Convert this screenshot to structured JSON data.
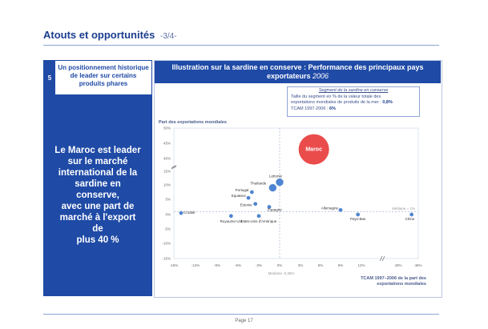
{
  "header": {
    "title": "Atouts et opportunités",
    "page_fraction": "-3/4-"
  },
  "left": {
    "number": "5",
    "box_text": "Un positionnement historique de leader sur certains produits phares",
    "panel_text": "Le Maroc est leader\nsur le marché\ninternational de la\nsardine en conserve,\navec une part de\nmarché à l'export de\nplus 40 %"
  },
  "chart_header": {
    "title": "Illustration sur la sardine en conserve : Performance des principaux pays exportateurs",
    "year": "2006"
  },
  "segment_box": {
    "title": "Segment de la sardine en conserve",
    "line1": "Taille du segment en % de la valeur totale des",
    "line2_prefix": "exportations mondiales de produits de la mer :",
    "line2_value": "0,8%",
    "line3_prefix": "TCAM 1997-2006 :",
    "line3_value": "6%"
  },
  "y_axis_title": "Part des exportations mondiales",
  "x_axis_title": "TCAM 1997–2006 de la part des exportations mondiales",
  "median_y_label": "Médiane = 1%",
  "median_x_label": "Médiane -0,38%",
  "footer": "Page 17",
  "colors": {
    "brand": "#1f4aa6",
    "bubble": "#ea4c4c",
    "point": "#4e86d4"
  },
  "chart_data": {
    "type": "scatter",
    "x_tick_labels": [
      "-15%",
      "-12%",
      "-9%",
      "-6%",
      "-3%",
      "0%",
      "3%",
      "6%",
      "9%",
      "12%",
      "40%",
      "46%"
    ],
    "y_tick_labels": [
      "-15%",
      "-10%",
      "-5%",
      "0%",
      "5%",
      "10%",
      "15%",
      "40%",
      "45%",
      "50%"
    ],
    "xlim": [
      -15,
      46
    ],
    "ylim": [
      -15,
      50
    ],
    "axis_breaks": "x between 12% and 40%, y between 15% and 40%",
    "grid": false,
    "points": [
      {
        "name": "Maroc",
        "x": 5,
        "y": 43,
        "size": "large"
      },
      {
        "name": "Lettonie",
        "x": 0,
        "y": 11,
        "size": "medium"
      },
      {
        "name": "Thaïlande",
        "x": -1,
        "y": 9,
        "size": "medium"
      },
      {
        "name": "Portugal",
        "x": -4,
        "y": 7.5,
        "size": "small"
      },
      {
        "name": "Equateur",
        "x": -4.5,
        "y": 5.5,
        "size": "small"
      },
      {
        "name": "Estonie",
        "x": -3.5,
        "y": 3.5,
        "size": "small"
      },
      {
        "name": "Espagne",
        "x": -1.5,
        "y": 2.5,
        "size": "small"
      },
      {
        "name": "Croatie",
        "x": -14,
        "y": 0.5,
        "size": "small"
      },
      {
        "name": "Royaume-Uni",
        "x": -7,
        "y": -0.5,
        "size": "small"
      },
      {
        "name": "Etats-Unis d'Amérique",
        "x": -3,
        "y": -0.5,
        "size": "small"
      },
      {
        "name": "Allemagne",
        "x": 9,
        "y": 1.5,
        "size": "small"
      },
      {
        "name": "Pays-Bas",
        "x": 11.5,
        "y": 0,
        "size": "small"
      },
      {
        "name": "Chine",
        "x": 44,
        "y": 0,
        "size": "small"
      }
    ]
  }
}
